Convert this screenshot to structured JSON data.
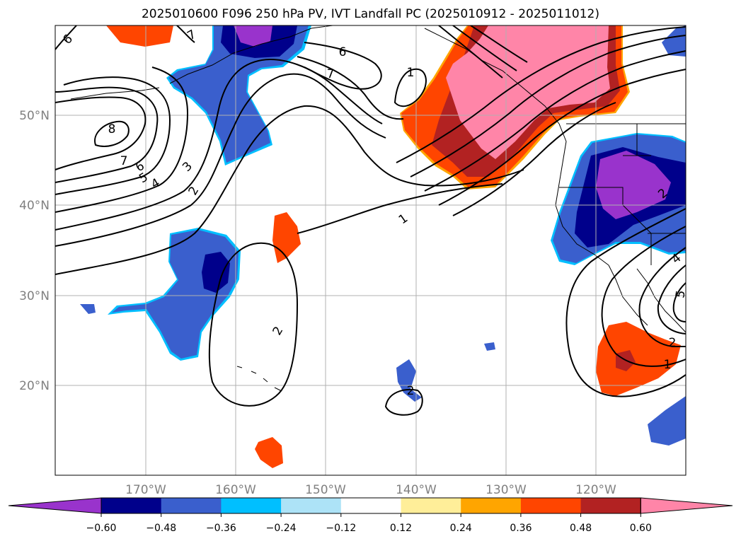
{
  "title": "2025010600 F096 250 hPa PV, IVT Landfall PC (2025010912 - 2025011012)",
  "map": {
    "projection": "PlateCarree",
    "lon_range": [
      "180",
      "110°W"
    ],
    "lat_range": [
      "10°N",
      "60°N"
    ],
    "grid": true,
    "lon_ticks": [
      "170°W",
      "160°W",
      "150°W",
      "140°W",
      "130°W",
      "120°W"
    ],
    "lat_ticks": [
      "50°N",
      "40°N",
      "30°N",
      "20°N"
    ],
    "contour_labels": [
      "8",
      "7",
      "6",
      "5",
      "4",
      "3",
      "2",
      "6",
      "7",
      "6",
      "7",
      "2",
      "1",
      "1",
      "2",
      "1",
      "2",
      "4",
      "5",
      "2"
    ]
  },
  "colorbar": {
    "orientation": "horizontal",
    "extend": "both",
    "colors": [
      "#9933cc",
      "#00008b",
      "#3a5fcd",
      "#00bfff",
      "#ade3f7",
      "#ffffff",
      "#ffee99",
      "#ffa500",
      "#ff4500",
      "#b22222",
      "#ff85a8"
    ],
    "tick_labels": [
      "−0.60",
      "−0.48",
      "−0.36",
      "−0.24",
      "−0.12",
      "0.12",
      "0.24",
      "0.36",
      "0.48",
      "0.60"
    ]
  }
}
